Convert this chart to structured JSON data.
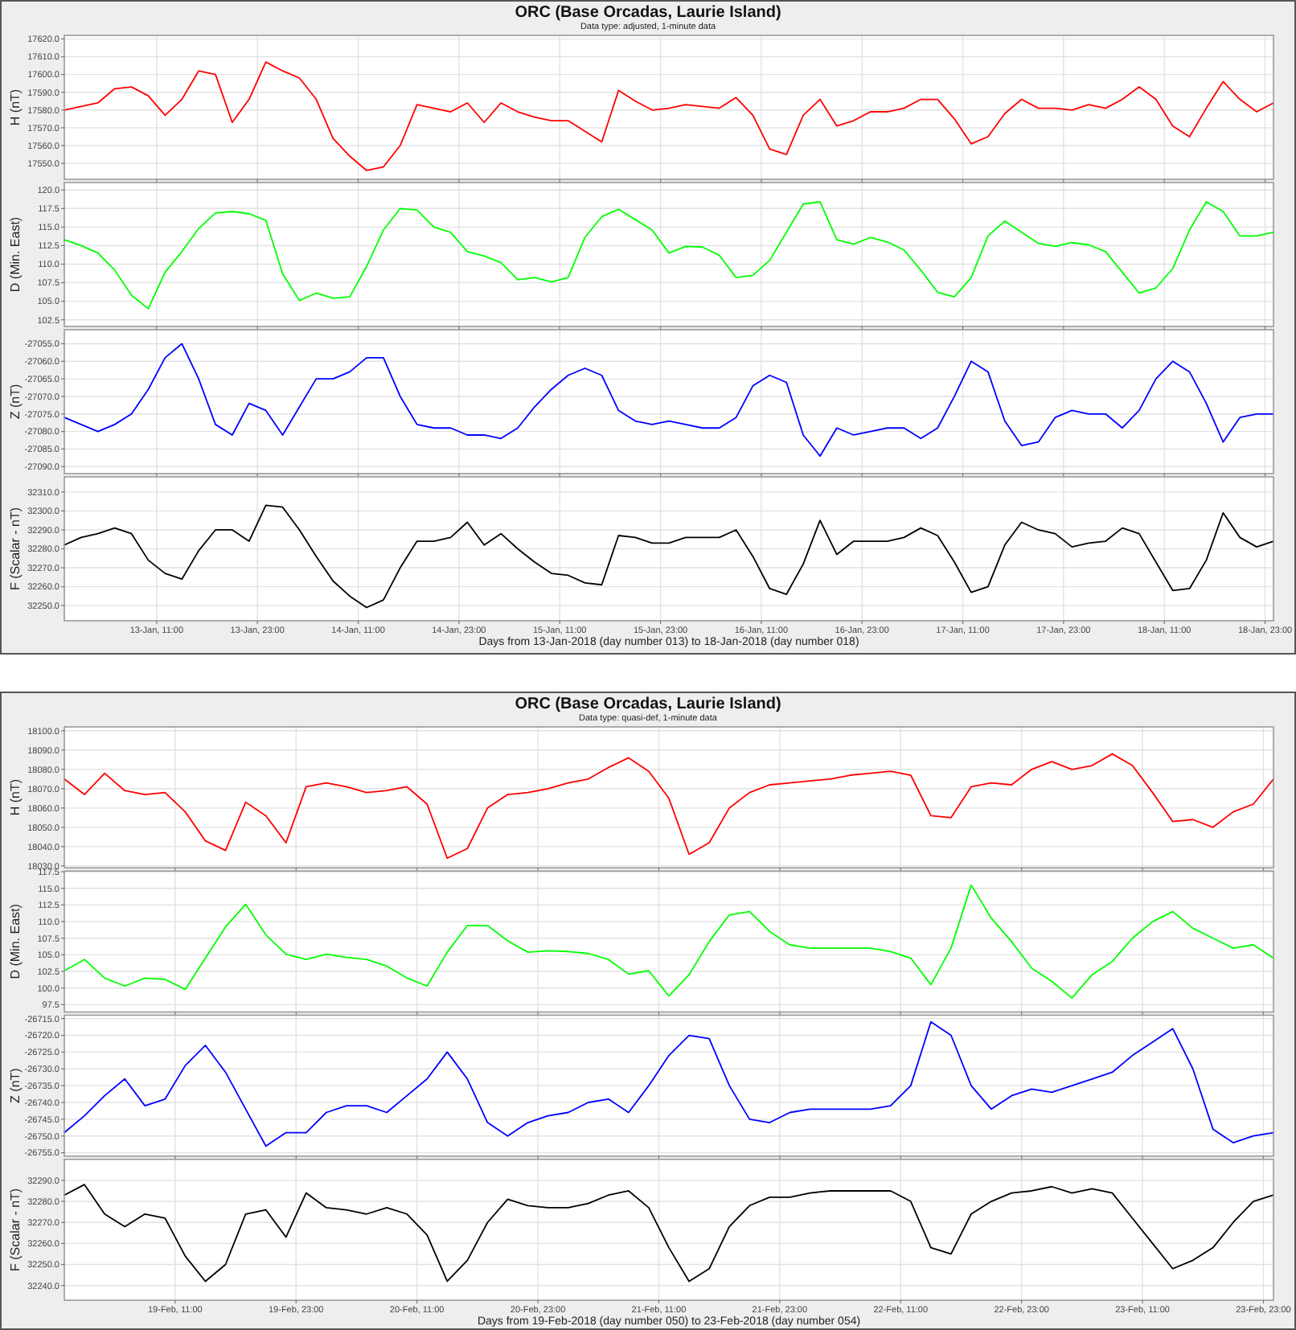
{
  "chart_data": [
    {
      "type": "line",
      "title": "ORC (Base Orcadas, Laurie Island)",
      "subtitle": "Data type: adjusted, 1-minute data",
      "ylabel": "H (nT)",
      "tick_labels": "y",
      "grid": true,
      "x": [
        "2018-01-13T00:00",
        "2018-01-13T02:00",
        "2018-01-13T04:00",
        "2018-01-13T06:00",
        "2018-01-13T08:00",
        "2018-01-13T10:00",
        "2018-01-13T12:00",
        "2018-01-13T14:00",
        "2018-01-13T16:00",
        "2018-01-13T18:00",
        "2018-01-13T20:00",
        "2018-01-13T22:00",
        "2018-01-14T00:00",
        "2018-01-14T02:00",
        "2018-01-14T04:00",
        "2018-01-14T06:00",
        "2018-01-14T08:00",
        "2018-01-14T10:00",
        "2018-01-14T12:00",
        "2018-01-14T14:00",
        "2018-01-14T16:00",
        "2018-01-14T18:00",
        "2018-01-14T20:00",
        "2018-01-14T22:00",
        "2018-01-15T00:00",
        "2018-01-15T02:00",
        "2018-01-15T04:00",
        "2018-01-15T06:00",
        "2018-01-15T08:00",
        "2018-01-15T10:00",
        "2018-01-15T12:00",
        "2018-01-15T14:00",
        "2018-01-15T16:00",
        "2018-01-15T18:00",
        "2018-01-15T20:00",
        "2018-01-15T22:00",
        "2018-01-16T00:00",
        "2018-01-16T02:00",
        "2018-01-16T04:00",
        "2018-01-16T06:00",
        "2018-01-16T08:00",
        "2018-01-16T10:00",
        "2018-01-16T12:00",
        "2018-01-16T14:00",
        "2018-01-16T16:00",
        "2018-01-16T18:00",
        "2018-01-16T20:00",
        "2018-01-16T22:00",
        "2018-01-17T00:00",
        "2018-01-17T02:00",
        "2018-01-17T04:00",
        "2018-01-17T06:00",
        "2018-01-17T08:00",
        "2018-01-17T10:00",
        "2018-01-17T12:00",
        "2018-01-17T14:00",
        "2018-01-17T16:00",
        "2018-01-17T18:00",
        "2018-01-17T20:00",
        "2018-01-17T22:00",
        "2018-01-18T00:00",
        "2018-01-18T02:00",
        "2018-01-18T04:00",
        "2018-01-18T06:00",
        "2018-01-18T08:00",
        "2018-01-18T10:00",
        "2018-01-18T12:00",
        "2018-01-18T14:00",
        "2018-01-18T16:00",
        "2018-01-18T18:00",
        "2018-01-18T20:00",
        "2018-01-18T22:00",
        "2018-01-19T00:00"
      ],
      "series": [
        {
          "color": "#ff0000",
          "values": [
            17580,
            17582,
            17584,
            17592,
            17593,
            17588,
            17577,
            17586,
            17602,
            17600,
            17573,
            17586,
            17607,
            17602,
            17598,
            17586,
            17564,
            17554,
            17546,
            17548,
            17560,
            17583,
            17581,
            17579,
            17584,
            17573,
            17584,
            17579,
            17576,
            17574,
            17574,
            17568,
            17562,
            17591,
            17585,
            17580,
            17581,
            17583,
            17582,
            17581,
            17587,
            17577,
            17558,
            17555,
            17577,
            17586,
            17571,
            17574,
            17579,
            17579,
            17581,
            17586,
            17586,
            17575,
            17561,
            17565,
            17578,
            17586,
            17581,
            17581,
            17580,
            17583,
            17581,
            17586,
            17593,
            17586,
            17571,
            17565,
            17581,
            17596,
            17586,
            17579,
            17584
          ]
        }
      ],
      "xlim": [
        "2018-01-13T00:00",
        "2018-01-19T00:00"
      ],
      "xticks": [
        "2018-01-13T11:00",
        "2018-01-13T23:00",
        "2018-01-14T11:00",
        "2018-01-14T23:00",
        "2018-01-15T11:00",
        "2018-01-15T23:00",
        "2018-01-16T11:00",
        "2018-01-16T23:00",
        "2018-01-17T11:00",
        "2018-01-17T23:00",
        "2018-01-18T11:00",
        "2018-01-18T23:00"
      ],
      "ylim": [
        17541,
        17622
      ],
      "yticks": [
        {
          "value": 17550,
          "label": "17550.0"
        },
        {
          "value": 17560,
          "label": "17560.0"
        },
        {
          "value": 17570,
          "label": "17570.0"
        },
        {
          "value": 17580,
          "label": "17580.0"
        },
        {
          "value": 17590,
          "label": "17590.0"
        },
        {
          "value": 17600,
          "label": "17600.0"
        },
        {
          "value": 17610,
          "label": "17610.0"
        },
        {
          "value": 17620,
          "label": "17620.0"
        }
      ]
    },
    {
      "type": "line",
      "ylabel": "D (Min. East)",
      "tick_labels": "y",
      "grid": true,
      "x": [
        "2018-01-13T00:00",
        "2018-01-13T02:00",
        "2018-01-13T04:00",
        "2018-01-13T06:00",
        "2018-01-13T08:00",
        "2018-01-13T10:00",
        "2018-01-13T12:00",
        "2018-01-13T14:00",
        "2018-01-13T16:00",
        "2018-01-13T18:00",
        "2018-01-13T20:00",
        "2018-01-13T22:00",
        "2018-01-14T00:00",
        "2018-01-14T02:00",
        "2018-01-14T04:00",
        "2018-01-14T06:00",
        "2018-01-14T08:00",
        "2018-01-14T10:00",
        "2018-01-14T12:00",
        "2018-01-14T14:00",
        "2018-01-14T16:00",
        "2018-01-14T18:00",
        "2018-01-14T20:00",
        "2018-01-14T22:00",
        "2018-01-15T00:00",
        "2018-01-15T02:00",
        "2018-01-15T04:00",
        "2018-01-15T06:00",
        "2018-01-15T08:00",
        "2018-01-15T10:00",
        "2018-01-15T12:00",
        "2018-01-15T14:00",
        "2018-01-15T16:00",
        "2018-01-15T18:00",
        "2018-01-15T20:00",
        "2018-01-15T22:00",
        "2018-01-16T00:00",
        "2018-01-16T02:00",
        "2018-01-16T04:00",
        "2018-01-16T06:00",
        "2018-01-16T08:00",
        "2018-01-16T10:00",
        "2018-01-16T12:00",
        "2018-01-16T14:00",
        "2018-01-16T16:00",
        "2018-01-16T18:00",
        "2018-01-16T20:00",
        "2018-01-16T22:00",
        "2018-01-17T00:00",
        "2018-01-17T02:00",
        "2018-01-17T04:00",
        "2018-01-17T06:00",
        "2018-01-17T08:00",
        "2018-01-17T10:00",
        "2018-01-17T12:00",
        "2018-01-17T14:00",
        "2018-01-17T16:00",
        "2018-01-17T18:00",
        "2018-01-17T20:00",
        "2018-01-17T22:00",
        "2018-01-18T00:00",
        "2018-01-18T02:00",
        "2018-01-18T04:00",
        "2018-01-18T06:00",
        "2018-01-18T08:00",
        "2018-01-18T10:00",
        "2018-01-18T12:00",
        "2018-01-18T14:00",
        "2018-01-18T16:00",
        "2018-01-18T18:00",
        "2018-01-18T20:00",
        "2018-01-18T22:00",
        "2018-01-19T00:00"
      ],
      "series": [
        {
          "color": "#00ff00",
          "values": [
            113.3,
            112.5,
            111.5,
            109.2,
            105.8,
            104.0,
            108.9,
            111.7,
            114.8,
            116.9,
            117.1,
            116.8,
            115.9,
            108.7,
            105.1,
            106.1,
            105.4,
            105.6,
            109.7,
            114.6,
            117.5,
            117.3,
            115.0,
            114.3,
            111.7,
            111.1,
            110.2,
            107.9,
            108.2,
            107.6,
            108.2,
            113.6,
            116.4,
            117.4,
            116.0,
            114.6,
            111.5,
            112.4,
            112.3,
            111.2,
            108.2,
            108.5,
            110.5,
            114.3,
            118.1,
            118.4,
            113.3,
            112.7,
            113.6,
            113.0,
            111.9,
            109.2,
            106.2,
            105.6,
            108.2,
            113.8,
            115.8,
            114.3,
            112.8,
            112.4,
            112.9,
            112.6,
            111.7,
            108.9,
            106.1,
            106.8,
            109.4,
            114.6,
            118.4,
            117.1,
            113.8,
            113.8,
            114.3
          ]
        }
      ],
      "xlim": [
        "2018-01-13T00:00",
        "2018-01-19T00:00"
      ],
      "xticks": [
        "2018-01-13T11:00",
        "2018-01-13T23:00",
        "2018-01-14T11:00",
        "2018-01-14T23:00",
        "2018-01-15T11:00",
        "2018-01-15T23:00",
        "2018-01-16T11:00",
        "2018-01-16T23:00",
        "2018-01-17T11:00",
        "2018-01-17T23:00",
        "2018-01-18T11:00",
        "2018-01-18T23:00"
      ],
      "ylim": [
        101.6,
        121.0
      ],
      "yticks": [
        {
          "value": 102.5,
          "label": "102.5"
        },
        {
          "value": 105,
          "label": "105.0"
        },
        {
          "value": 107.5,
          "label": "107.5"
        },
        {
          "value": 110,
          "label": "110.0"
        },
        {
          "value": 112.5,
          "label": "112.5"
        },
        {
          "value": 115,
          "label": "115.0"
        },
        {
          "value": 117.5,
          "label": "117.5"
        },
        {
          "value": 120,
          "label": "120.0"
        }
      ]
    },
    {
      "type": "line",
      "ylabel": "Z (nT)",
      "tick_labels": "y",
      "grid": true,
      "x": [
        "2018-01-13T00:00",
        "2018-01-13T02:00",
        "2018-01-13T04:00",
        "2018-01-13T06:00",
        "2018-01-13T08:00",
        "2018-01-13T10:00",
        "2018-01-13T12:00",
        "2018-01-13T14:00",
        "2018-01-13T16:00",
        "2018-01-13T18:00",
        "2018-01-13T20:00",
        "2018-01-13T22:00",
        "2018-01-14T00:00",
        "2018-01-14T02:00",
        "2018-01-14T04:00",
        "2018-01-14T06:00",
        "2018-01-14T08:00",
        "2018-01-14T10:00",
        "2018-01-14T12:00",
        "2018-01-14T14:00",
        "2018-01-14T16:00",
        "2018-01-14T18:00",
        "2018-01-14T20:00",
        "2018-01-14T22:00",
        "2018-01-15T00:00",
        "2018-01-15T02:00",
        "2018-01-15T04:00",
        "2018-01-15T06:00",
        "2018-01-15T08:00",
        "2018-01-15T10:00",
        "2018-01-15T12:00",
        "2018-01-15T14:00",
        "2018-01-15T16:00",
        "2018-01-15T18:00",
        "2018-01-15T20:00",
        "2018-01-15T22:00",
        "2018-01-16T00:00",
        "2018-01-16T02:00",
        "2018-01-16T04:00",
        "2018-01-16T06:00",
        "2018-01-16T08:00",
        "2018-01-16T10:00",
        "2018-01-16T12:00",
        "2018-01-16T14:00",
        "2018-01-16T16:00",
        "2018-01-16T18:00",
        "2018-01-16T20:00",
        "2018-01-16T22:00",
        "2018-01-17T00:00",
        "2018-01-17T02:00",
        "2018-01-17T04:00",
        "2018-01-17T06:00",
        "2018-01-17T08:00",
        "2018-01-17T10:00",
        "2018-01-17T12:00",
        "2018-01-17T14:00",
        "2018-01-17T16:00",
        "2018-01-17T18:00",
        "2018-01-17T20:00",
        "2018-01-17T22:00",
        "2018-01-18T00:00",
        "2018-01-18T02:00",
        "2018-01-18T04:00",
        "2018-01-18T06:00",
        "2018-01-18T08:00",
        "2018-01-18T10:00",
        "2018-01-18T12:00",
        "2018-01-18T14:00",
        "2018-01-18T16:00",
        "2018-01-18T18:00",
        "2018-01-18T20:00",
        "2018-01-18T22:00",
        "2018-01-19T00:00"
      ],
      "series": [
        {
          "color": "#0000ff",
          "values": [
            -27076,
            -27078,
            -27080,
            -27078,
            -27075,
            -27068,
            -27059,
            -27055,
            -27065,
            -27078,
            -27081,
            -27072,
            -27074,
            -27081,
            -27073,
            -27065,
            -27065,
            -27063,
            -27059,
            -27059,
            -27070,
            -27078,
            -27079,
            -27079,
            -27081,
            -27081,
            -27082,
            -27079,
            -27073,
            -27068,
            -27064,
            -27062,
            -27064,
            -27074,
            -27077,
            -27078,
            -27077,
            -27078,
            -27079,
            -27079,
            -27076,
            -27067,
            -27064,
            -27066,
            -27081,
            -27087,
            -27079,
            -27081,
            -27080,
            -27079,
            -27079,
            -27082,
            -27079,
            -27070,
            -27060,
            -27063,
            -27077,
            -27084,
            -27083,
            -27076,
            -27074,
            -27075,
            -27075,
            -27079,
            -27074,
            -27065,
            -27060,
            -27063,
            -27072,
            -27083,
            -27076,
            -27075,
            -27075
          ]
        }
      ],
      "xlim": [
        "2018-01-13T00:00",
        "2018-01-19T00:00"
      ],
      "xticks": [
        "2018-01-13T11:00",
        "2018-01-13T23:00",
        "2018-01-14T11:00",
        "2018-01-14T23:00",
        "2018-01-15T11:00",
        "2018-01-15T23:00",
        "2018-01-16T11:00",
        "2018-01-16T23:00",
        "2018-01-17T11:00",
        "2018-01-17T23:00",
        "2018-01-18T11:00",
        "2018-01-18T23:00"
      ],
      "ylim": [
        -27092,
        -27051
      ],
      "yticks": [
        {
          "value": -27090,
          "label": "-27090.0"
        },
        {
          "value": -27085,
          "label": "-27085.0"
        },
        {
          "value": -27080,
          "label": "-27080.0"
        },
        {
          "value": -27075,
          "label": "-27075.0"
        },
        {
          "value": -27070,
          "label": "-27070.0"
        },
        {
          "value": -27065,
          "label": "-27065.0"
        },
        {
          "value": -27060,
          "label": "-27060.0"
        },
        {
          "value": -27055,
          "label": "-27055.0"
        }
      ]
    },
    {
      "type": "line",
      "ylabel": "F (Scalar - nT)",
      "xlabel": "Days from 13-Jan-2018 (day number 013) to 18-Jan-2018 (day number 018)",
      "grid": true,
      "x": [
        "2018-01-13T00:00",
        "2018-01-13T02:00",
        "2018-01-13T04:00",
        "2018-01-13T06:00",
        "2018-01-13T08:00",
        "2018-01-13T10:00",
        "2018-01-13T12:00",
        "2018-01-13T14:00",
        "2018-01-13T16:00",
        "2018-01-13T18:00",
        "2018-01-13T20:00",
        "2018-01-13T22:00",
        "2018-01-14T00:00",
        "2018-01-14T02:00",
        "2018-01-14T04:00",
        "2018-01-14T06:00",
        "2018-01-14T08:00",
        "2018-01-14T10:00",
        "2018-01-14T12:00",
        "2018-01-14T14:00",
        "2018-01-14T16:00",
        "2018-01-14T18:00",
        "2018-01-14T20:00",
        "2018-01-14T22:00",
        "2018-01-15T00:00",
        "2018-01-15T02:00",
        "2018-01-15T04:00",
        "2018-01-15T06:00",
        "2018-01-15T08:00",
        "2018-01-15T10:00",
        "2018-01-15T12:00",
        "2018-01-15T14:00",
        "2018-01-15T16:00",
        "2018-01-15T18:00",
        "2018-01-15T20:00",
        "2018-01-15T22:00",
        "2018-01-16T00:00",
        "2018-01-16T02:00",
        "2018-01-16T04:00",
        "2018-01-16T06:00",
        "2018-01-16T08:00",
        "2018-01-16T10:00",
        "2018-01-16T12:00",
        "2018-01-16T14:00",
        "2018-01-16T16:00",
        "2018-01-16T18:00",
        "2018-01-16T20:00",
        "2018-01-16T22:00",
        "2018-01-17T00:00",
        "2018-01-17T02:00",
        "2018-01-17T04:00",
        "2018-01-17T06:00",
        "2018-01-17T08:00",
        "2018-01-17T10:00",
        "2018-01-17T12:00",
        "2018-01-17T14:00",
        "2018-01-17T16:00",
        "2018-01-17T18:00",
        "2018-01-17T20:00",
        "2018-01-17T22:00",
        "2018-01-18T00:00",
        "2018-01-18T02:00",
        "2018-01-18T04:00",
        "2018-01-18T06:00",
        "2018-01-18T08:00",
        "2018-01-18T10:00",
        "2018-01-18T12:00",
        "2018-01-18T14:00",
        "2018-01-18T16:00",
        "2018-01-18T18:00",
        "2018-01-18T20:00",
        "2018-01-18T22:00",
        "2018-01-19T00:00"
      ],
      "series": [
        {
          "color": "#000000",
          "values": [
            32282,
            32286,
            32288,
            32291,
            32288,
            32274,
            32267,
            32264,
            32279,
            32290,
            32290,
            32284,
            32303,
            32302,
            32290,
            32276,
            32263,
            32255,
            32249,
            32253,
            32270,
            32284,
            32284,
            32286,
            32294,
            32282,
            32288,
            32280,
            32273,
            32267,
            32266,
            32262,
            32261,
            32287,
            32286,
            32283,
            32283,
            32286,
            32286,
            32286,
            32290,
            32276,
            32259,
            32256,
            32272,
            32295,
            32277,
            32284,
            32284,
            32284,
            32286,
            32291,
            32287,
            32273,
            32257,
            32260,
            32282,
            32294,
            32290,
            32288,
            32281,
            32283,
            32284,
            32291,
            32288,
            32273,
            32258,
            32259,
            32274,
            32299,
            32286,
            32281,
            32284
          ]
        }
      ],
      "xlim": [
        "2018-01-13T00:00",
        "2018-01-19T00:00"
      ],
      "xticks": [
        {
          "value": "2018-01-13T11:00",
          "label": "13-Jan, 11:00"
        },
        {
          "value": "2018-01-13T23:00",
          "label": "13-Jan, 23:00"
        },
        {
          "value": "2018-01-14T11:00",
          "label": "14-Jan, 11:00"
        },
        {
          "value": "2018-01-14T23:00",
          "label": "14-Jan, 23:00"
        },
        {
          "value": "2018-01-15T11:00",
          "label": "15-Jan, 11:00"
        },
        {
          "value": "2018-01-15T23:00",
          "label": "15-Jan, 23:00"
        },
        {
          "value": "2018-01-16T11:00",
          "label": "16-Jan, 11:00"
        },
        {
          "value": "2018-01-16T23:00",
          "label": "16-Jan, 23:00"
        },
        {
          "value": "2018-01-17T11:00",
          "label": "17-Jan, 11:00"
        },
        {
          "value": "2018-01-17T23:00",
          "label": "17-Jan, 23:00"
        },
        {
          "value": "2018-01-18T11:00",
          "label": "18-Jan, 11:00"
        },
        {
          "value": "2018-01-18T23:00",
          "label": "18-Jan, 23:00"
        }
      ],
      "ylim": [
        32242,
        32318
      ],
      "yticks": [
        {
          "value": 32250,
          "label": "32250.0"
        },
        {
          "value": 32260,
          "label": "32260.0"
        },
        {
          "value": 32270,
          "label": "32270.0"
        },
        {
          "value": 32280,
          "label": "32280.0"
        },
        {
          "value": 32290,
          "label": "32290.0"
        },
        {
          "value": 32300,
          "label": "32300.0"
        },
        {
          "value": 32310,
          "label": "32310.0"
        }
      ]
    },
    {
      "type": "line",
      "title": "ORC (Base Orcadas, Laurie Island)",
      "subtitle": "Data type: quasi-def, 1-minute data",
      "ylabel": "H (nT)",
      "tick_labels": "y",
      "grid": true,
      "x": [
        "2018-02-19T00:00",
        "2018-02-19T02:00",
        "2018-02-19T04:00",
        "2018-02-19T06:00",
        "2018-02-19T08:00",
        "2018-02-19T10:00",
        "2018-02-19T12:00",
        "2018-02-19T14:00",
        "2018-02-19T16:00",
        "2018-02-19T18:00",
        "2018-02-19T20:00",
        "2018-02-19T22:00",
        "2018-02-20T00:00",
        "2018-02-20T02:00",
        "2018-02-20T04:00",
        "2018-02-20T06:00",
        "2018-02-20T08:00",
        "2018-02-20T10:00",
        "2018-02-20T12:00",
        "2018-02-20T14:00",
        "2018-02-20T16:00",
        "2018-02-20T18:00",
        "2018-02-20T20:00",
        "2018-02-20T22:00",
        "2018-02-21T00:00",
        "2018-02-21T02:00",
        "2018-02-21T04:00",
        "2018-02-21T06:00",
        "2018-02-21T08:00",
        "2018-02-21T10:00",
        "2018-02-21T12:00",
        "2018-02-21T14:00",
        "2018-02-21T16:00",
        "2018-02-21T18:00",
        "2018-02-21T20:00",
        "2018-02-21T22:00",
        "2018-02-22T00:00",
        "2018-02-22T02:00",
        "2018-02-22T04:00",
        "2018-02-22T06:00",
        "2018-02-22T08:00",
        "2018-02-22T10:00",
        "2018-02-22T12:00",
        "2018-02-22T14:00",
        "2018-02-22T16:00",
        "2018-02-22T18:00",
        "2018-02-22T20:00",
        "2018-02-22T22:00",
        "2018-02-23T00:00",
        "2018-02-23T02:00",
        "2018-02-23T04:00",
        "2018-02-23T06:00",
        "2018-02-23T08:00",
        "2018-02-23T10:00",
        "2018-02-23T12:00",
        "2018-02-23T14:00",
        "2018-02-23T16:00",
        "2018-02-23T18:00",
        "2018-02-23T20:00",
        "2018-02-23T22:00",
        "2018-02-24T00:00"
      ],
      "series": [
        {
          "color": "#ff0000",
          "values": [
            18075,
            18067,
            18078,
            18069,
            18067,
            18068,
            18058,
            18043,
            18038,
            18063,
            18056,
            18042,
            18071,
            18073,
            18071,
            18068,
            18069,
            18071,
            18062,
            18034,
            18039,
            18060,
            18067,
            18068,
            18070,
            18073,
            18075,
            18081,
            18086,
            18079,
            18065,
            18036,
            18042,
            18060,
            18068,
            18072,
            18073,
            18074,
            18075,
            18077,
            18078,
            18079,
            18077,
            18056,
            18055,
            18071,
            18073,
            18072,
            18080,
            18084,
            18080,
            18082,
            18088,
            18082,
            18068,
            18053,
            18054,
            18050,
            18058,
            18062,
            18075
          ]
        }
      ],
      "xlim": [
        "2018-02-19T00:00",
        "2018-02-24T00:00"
      ],
      "xticks": [
        "2018-02-19T11:00",
        "2018-02-19T23:00",
        "2018-02-20T11:00",
        "2018-02-20T23:00",
        "2018-02-21T11:00",
        "2018-02-21T23:00",
        "2018-02-22T11:00",
        "2018-02-22T23:00",
        "2018-02-23T11:00",
        "2018-02-23T23:00"
      ],
      "ylim": [
        18029,
        18102
      ],
      "yticks": [
        {
          "value": 18030,
          "label": "18030.0"
        },
        {
          "value": 18040,
          "label": "18040.0"
        },
        {
          "value": 18050,
          "label": "18050.0"
        },
        {
          "value": 18060,
          "label": "18060.0"
        },
        {
          "value": 18070,
          "label": "18070.0"
        },
        {
          "value": 18080,
          "label": "18080.0"
        },
        {
          "value": 18090,
          "label": "18090.0"
        },
        {
          "value": 18100,
          "label": "18100.0"
        }
      ]
    },
    {
      "type": "line",
      "ylabel": "D (Min. East)",
      "tick_labels": "y",
      "grid": true,
      "x": [
        "2018-02-19T00:00",
        "2018-02-19T02:00",
        "2018-02-19T04:00",
        "2018-02-19T06:00",
        "2018-02-19T08:00",
        "2018-02-19T10:00",
        "2018-02-19T12:00",
        "2018-02-19T14:00",
        "2018-02-19T16:00",
        "2018-02-19T18:00",
        "2018-02-19T20:00",
        "2018-02-19T22:00",
        "2018-02-20T00:00",
        "2018-02-20T02:00",
        "2018-02-20T04:00",
        "2018-02-20T06:00",
        "2018-02-20T08:00",
        "2018-02-20T10:00",
        "2018-02-20T12:00",
        "2018-02-20T14:00",
        "2018-02-20T16:00",
        "2018-02-20T18:00",
        "2018-02-20T20:00",
        "2018-02-20T22:00",
        "2018-02-21T00:00",
        "2018-02-21T02:00",
        "2018-02-21T04:00",
        "2018-02-21T06:00",
        "2018-02-21T08:00",
        "2018-02-21T10:00",
        "2018-02-21T12:00",
        "2018-02-21T14:00",
        "2018-02-21T16:00",
        "2018-02-21T18:00",
        "2018-02-21T20:00",
        "2018-02-21T22:00",
        "2018-02-22T00:00",
        "2018-02-22T02:00",
        "2018-02-22T04:00",
        "2018-02-22T06:00",
        "2018-02-22T08:00",
        "2018-02-22T10:00",
        "2018-02-22T12:00",
        "2018-02-22T14:00",
        "2018-02-22T16:00",
        "2018-02-22T18:00",
        "2018-02-22T20:00",
        "2018-02-22T22:00",
        "2018-02-23T00:00",
        "2018-02-23T02:00",
        "2018-02-23T04:00",
        "2018-02-23T06:00",
        "2018-02-23T08:00",
        "2018-02-23T10:00",
        "2018-02-23T12:00",
        "2018-02-23T14:00",
        "2018-02-23T16:00",
        "2018-02-23T18:00",
        "2018-02-23T20:00",
        "2018-02-23T22:00",
        "2018-02-24T00:00"
      ],
      "series": [
        {
          "color": "#00ff00",
          "values": [
            102.6,
            104.3,
            101.5,
            100.3,
            101.5,
            101.3,
            99.8,
            104.5,
            109.2,
            112.6,
            108.0,
            105.1,
            104.3,
            105.1,
            104.6,
            104.3,
            103.3,
            101.5,
            100.3,
            105.4,
            109.4,
            109.4,
            107.1,
            105.4,
            105.6,
            105.5,
            105.2,
            104.3,
            102.1,
            102.6,
            98.8,
            102.0,
            107.0,
            111.0,
            111.5,
            108.5,
            106.5,
            106.0,
            106.0,
            106.0,
            106.0,
            105.5,
            104.5,
            100.5,
            106.0,
            115.5,
            110.5,
            107.0,
            103.0,
            101.0,
            98.5,
            102.0,
            104.0,
            107.5,
            110.0,
            111.5,
            109.0,
            107.5,
            106.0,
            106.5,
            104.5
          ]
        }
      ],
      "xlim": [
        "2018-02-19T00:00",
        "2018-02-24T00:00"
      ],
      "xticks": [
        "2018-02-19T11:00",
        "2018-02-19T23:00",
        "2018-02-20T11:00",
        "2018-02-20T23:00",
        "2018-02-21T11:00",
        "2018-02-21T23:00",
        "2018-02-22T11:00",
        "2018-02-22T23:00",
        "2018-02-23T11:00",
        "2018-02-23T23:00"
      ],
      "ylim": [
        96.4,
        117.6
      ],
      "yticks": [
        {
          "value": 97.5,
          "label": "97.5"
        },
        {
          "value": 100,
          "label": "100.0"
        },
        {
          "value": 102.5,
          "label": "102.5"
        },
        {
          "value": 105,
          "label": "105.0"
        },
        {
          "value": 107.5,
          "label": "107.5"
        },
        {
          "value": 110,
          "label": "110.0"
        },
        {
          "value": 112.5,
          "label": "112.5"
        },
        {
          "value": 115,
          "label": "115.0"
        },
        {
          "value": 117.5,
          "label": "117.5"
        }
      ]
    },
    {
      "type": "line",
      "ylabel": "Z (nT)",
      "tick_labels": "y",
      "grid": true,
      "x": [
        "2018-02-19T00:00",
        "2018-02-19T02:00",
        "2018-02-19T04:00",
        "2018-02-19T06:00",
        "2018-02-19T08:00",
        "2018-02-19T10:00",
        "2018-02-19T12:00",
        "2018-02-19T14:00",
        "2018-02-19T16:00",
        "2018-02-19T18:00",
        "2018-02-19T20:00",
        "2018-02-19T22:00",
        "2018-02-20T00:00",
        "2018-02-20T02:00",
        "2018-02-20T04:00",
        "2018-02-20T06:00",
        "2018-02-20T08:00",
        "2018-02-20T10:00",
        "2018-02-20T12:00",
        "2018-02-20T14:00",
        "2018-02-20T16:00",
        "2018-02-20T18:00",
        "2018-02-20T20:00",
        "2018-02-20T22:00",
        "2018-02-21T00:00",
        "2018-02-21T02:00",
        "2018-02-21T04:00",
        "2018-02-21T06:00",
        "2018-02-21T08:00",
        "2018-02-21T10:00",
        "2018-02-21T12:00",
        "2018-02-21T14:00",
        "2018-02-21T16:00",
        "2018-02-21T18:00",
        "2018-02-21T20:00",
        "2018-02-21T22:00",
        "2018-02-22T00:00",
        "2018-02-22T02:00",
        "2018-02-22T04:00",
        "2018-02-22T06:00",
        "2018-02-22T08:00",
        "2018-02-22T10:00",
        "2018-02-22T12:00",
        "2018-02-22T14:00",
        "2018-02-22T16:00",
        "2018-02-22T18:00",
        "2018-02-22T20:00",
        "2018-02-22T22:00",
        "2018-02-23T00:00",
        "2018-02-23T02:00",
        "2018-02-23T04:00",
        "2018-02-23T06:00",
        "2018-02-23T08:00",
        "2018-02-23T10:00",
        "2018-02-23T12:00",
        "2018-02-23T14:00",
        "2018-02-23T16:00",
        "2018-02-23T18:00",
        "2018-02-23T20:00",
        "2018-02-23T22:00",
        "2018-02-24T00:00"
      ],
      "series": [
        {
          "color": "#0000ff",
          "values": [
            -26749,
            -26744,
            -26738,
            -26733,
            -26741,
            -26739,
            -26729,
            -26723,
            -26731,
            -26742,
            -26753,
            -26749,
            -26749,
            -26743,
            -26741,
            -26741,
            -26743,
            -26738,
            -26733,
            -26725,
            -26733,
            -26746,
            -26750,
            -26746,
            -26744,
            -26743,
            -26740,
            -26739,
            -26743,
            -26735,
            -26726,
            -26720,
            -26721,
            -26735,
            -26745,
            -26746,
            -26743,
            -26742,
            -26742,
            -26742,
            -26742,
            -26741,
            -26735,
            -26716,
            -26720,
            -26735,
            -26742,
            -26738,
            -26736,
            -26737,
            -26735,
            -26733,
            -26731,
            -26726,
            -26722,
            -26718,
            -26730,
            -26748,
            -26752,
            -26750,
            -26749
          ]
        }
      ],
      "xlim": [
        "2018-02-19T00:00",
        "2018-02-24T00:00"
      ],
      "xticks": [
        "2018-02-19T11:00",
        "2018-02-19T23:00",
        "2018-02-20T11:00",
        "2018-02-20T23:00",
        "2018-02-21T11:00",
        "2018-02-21T23:00",
        "2018-02-22T11:00",
        "2018-02-22T23:00",
        "2018-02-23T11:00",
        "2018-02-23T23:00"
      ],
      "ylim": [
        -26756,
        -26714
      ],
      "yticks": [
        {
          "value": -26755,
          "label": "-26755.0"
        },
        {
          "value": -26750,
          "label": "-26750.0"
        },
        {
          "value": -26745,
          "label": "-26745.0"
        },
        {
          "value": -26740,
          "label": "-26740.0"
        },
        {
          "value": -26735,
          "label": "-26735.0"
        },
        {
          "value": -26730,
          "label": "-26730.0"
        },
        {
          "value": -26725,
          "label": "-26725.0"
        },
        {
          "value": -26720,
          "label": "-26720.0"
        },
        {
          "value": -26715,
          "label": "-26715.0"
        }
      ]
    },
    {
      "type": "line",
      "ylabel": "F (Scalar - nT)",
      "xlabel": "Days from 19-Feb-2018 (day number 050) to 23-Feb-2018 (day number 054)",
      "grid": true,
      "x": [
        "2018-02-19T00:00",
        "2018-02-19T02:00",
        "2018-02-19T04:00",
        "2018-02-19T06:00",
        "2018-02-19T08:00",
        "2018-02-19T10:00",
        "2018-02-19T12:00",
        "2018-02-19T14:00",
        "2018-02-19T16:00",
        "2018-02-19T18:00",
        "2018-02-19T20:00",
        "2018-02-19T22:00",
        "2018-02-20T00:00",
        "2018-02-20T02:00",
        "2018-02-20T04:00",
        "2018-02-20T06:00",
        "2018-02-20T08:00",
        "2018-02-20T10:00",
        "2018-02-20T12:00",
        "2018-02-20T14:00",
        "2018-02-20T16:00",
        "2018-02-20T18:00",
        "2018-02-20T20:00",
        "2018-02-20T22:00",
        "2018-02-21T00:00",
        "2018-02-21T02:00",
        "2018-02-21T04:00",
        "2018-02-21T06:00",
        "2018-02-21T08:00",
        "2018-02-21T10:00",
        "2018-02-21T12:00",
        "2018-02-21T14:00",
        "2018-02-21T16:00",
        "2018-02-21T18:00",
        "2018-02-21T20:00",
        "2018-02-21T22:00",
        "2018-02-22T00:00",
        "2018-02-22T02:00",
        "2018-02-22T04:00",
        "2018-02-22T06:00",
        "2018-02-22T08:00",
        "2018-02-22T10:00",
        "2018-02-22T12:00",
        "2018-02-22T14:00",
        "2018-02-22T16:00",
        "2018-02-22T18:00",
        "2018-02-22T20:00",
        "2018-02-22T22:00",
        "2018-02-23T00:00",
        "2018-02-23T02:00",
        "2018-02-23T04:00",
        "2018-02-23T06:00",
        "2018-02-23T08:00",
        "2018-02-23T10:00",
        "2018-02-23T12:00",
        "2018-02-23T14:00",
        "2018-02-23T16:00",
        "2018-02-23T18:00",
        "2018-02-23T20:00",
        "2018-02-23T22:00",
        "2018-02-24T00:00"
      ],
      "series": [
        {
          "color": "#000000",
          "values": [
            32283,
            32288,
            32274,
            32268,
            32274,
            32272,
            32254,
            32242,
            32250,
            32274,
            32276,
            32263,
            32284,
            32277,
            32276,
            32274,
            32277,
            32274,
            32264,
            32242,
            32252,
            32270,
            32281,
            32278,
            32277,
            32277,
            32279,
            32283,
            32285,
            32277,
            32258,
            32242,
            32248,
            32268,
            32278,
            32282,
            32282,
            32284,
            32285,
            32285,
            32285,
            32285,
            32280,
            32258,
            32255,
            32274,
            32280,
            32284,
            32285,
            32287,
            32284,
            32286,
            32284,
            32272,
            32260,
            32248,
            32252,
            32258,
            32270,
            32280,
            32283
          ]
        }
      ],
      "xlim": [
        "2018-02-19T00:00",
        "2018-02-24T00:00"
      ],
      "xticks": [
        {
          "value": "2018-02-19T11:00",
          "label": "19-Feb, 11:00"
        },
        {
          "value": "2018-02-19T23:00",
          "label": "19-Feb, 23:00"
        },
        {
          "value": "2018-02-20T11:00",
          "label": "20-Feb, 11:00"
        },
        {
          "value": "2018-02-20T23:00",
          "label": "20-Feb, 23:00"
        },
        {
          "value": "2018-02-21T11:00",
          "label": "21-Feb, 11:00"
        },
        {
          "value": "2018-02-21T23:00",
          "label": "21-Feb, 23:00"
        },
        {
          "value": "2018-02-22T11:00",
          "label": "22-Feb, 11:00"
        },
        {
          "value": "2018-02-22T23:00",
          "label": "22-Feb, 23:00"
        },
        {
          "value": "2018-02-23T11:00",
          "label": "23-Feb, 11:00"
        },
        {
          "value": "2018-02-23T23:00",
          "label": "23-Feb, 23:00"
        }
      ],
      "ylim": [
        32233,
        32300
      ],
      "yticks": [
        {
          "value": 32240,
          "label": "32240.0"
        },
        {
          "value": 32250,
          "label": "32250.0"
        },
        {
          "value": 32260,
          "label": "32260.0"
        },
        {
          "value": 32270,
          "label": "32270.0"
        },
        {
          "value": 32280,
          "label": "32280.0"
        },
        {
          "value": 32290,
          "label": "32290.0"
        }
      ]
    }
  ]
}
